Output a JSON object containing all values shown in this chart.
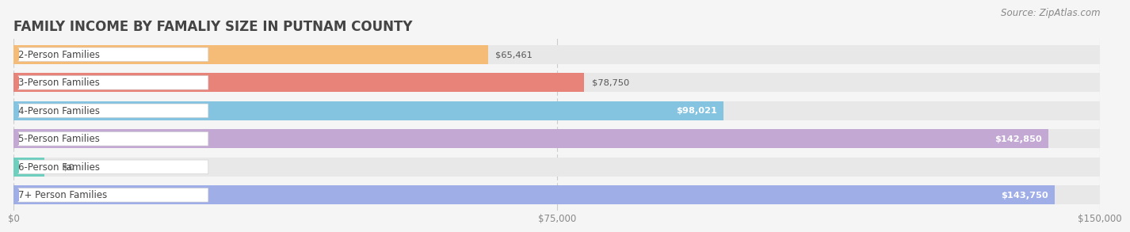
{
  "title": "FAMILY INCOME BY FAMALIY SIZE IN PUTNAM COUNTY",
  "source": "Source: ZipAtlas.com",
  "categories": [
    "2-Person Families",
    "3-Person Families",
    "4-Person Families",
    "5-Person Families",
    "6-Person Families",
    "7+ Person Families"
  ],
  "values": [
    65461,
    78750,
    98021,
    142850,
    0,
    143750
  ],
  "bar_colors": [
    "#f5bc78",
    "#e8837a",
    "#85c4e0",
    "#c3a8d4",
    "#6ecfbf",
    "#a0aee8"
  ],
  "bar_bg_color": "#e8e8e8",
  "xlim": [
    0,
    150000
  ],
  "xticks": [
    0,
    75000,
    150000
  ],
  "xtick_labels": [
    "$0",
    "$75,000",
    "$150,000"
  ],
  "title_fontsize": 12,
  "title_color": "#444444",
  "label_fontsize": 8.5,
  "value_fontsize": 8.2,
  "source_fontsize": 8.5,
  "background_color": "#f5f5f5",
  "bar_height": 0.68,
  "label_bg_color": "#ffffff"
}
